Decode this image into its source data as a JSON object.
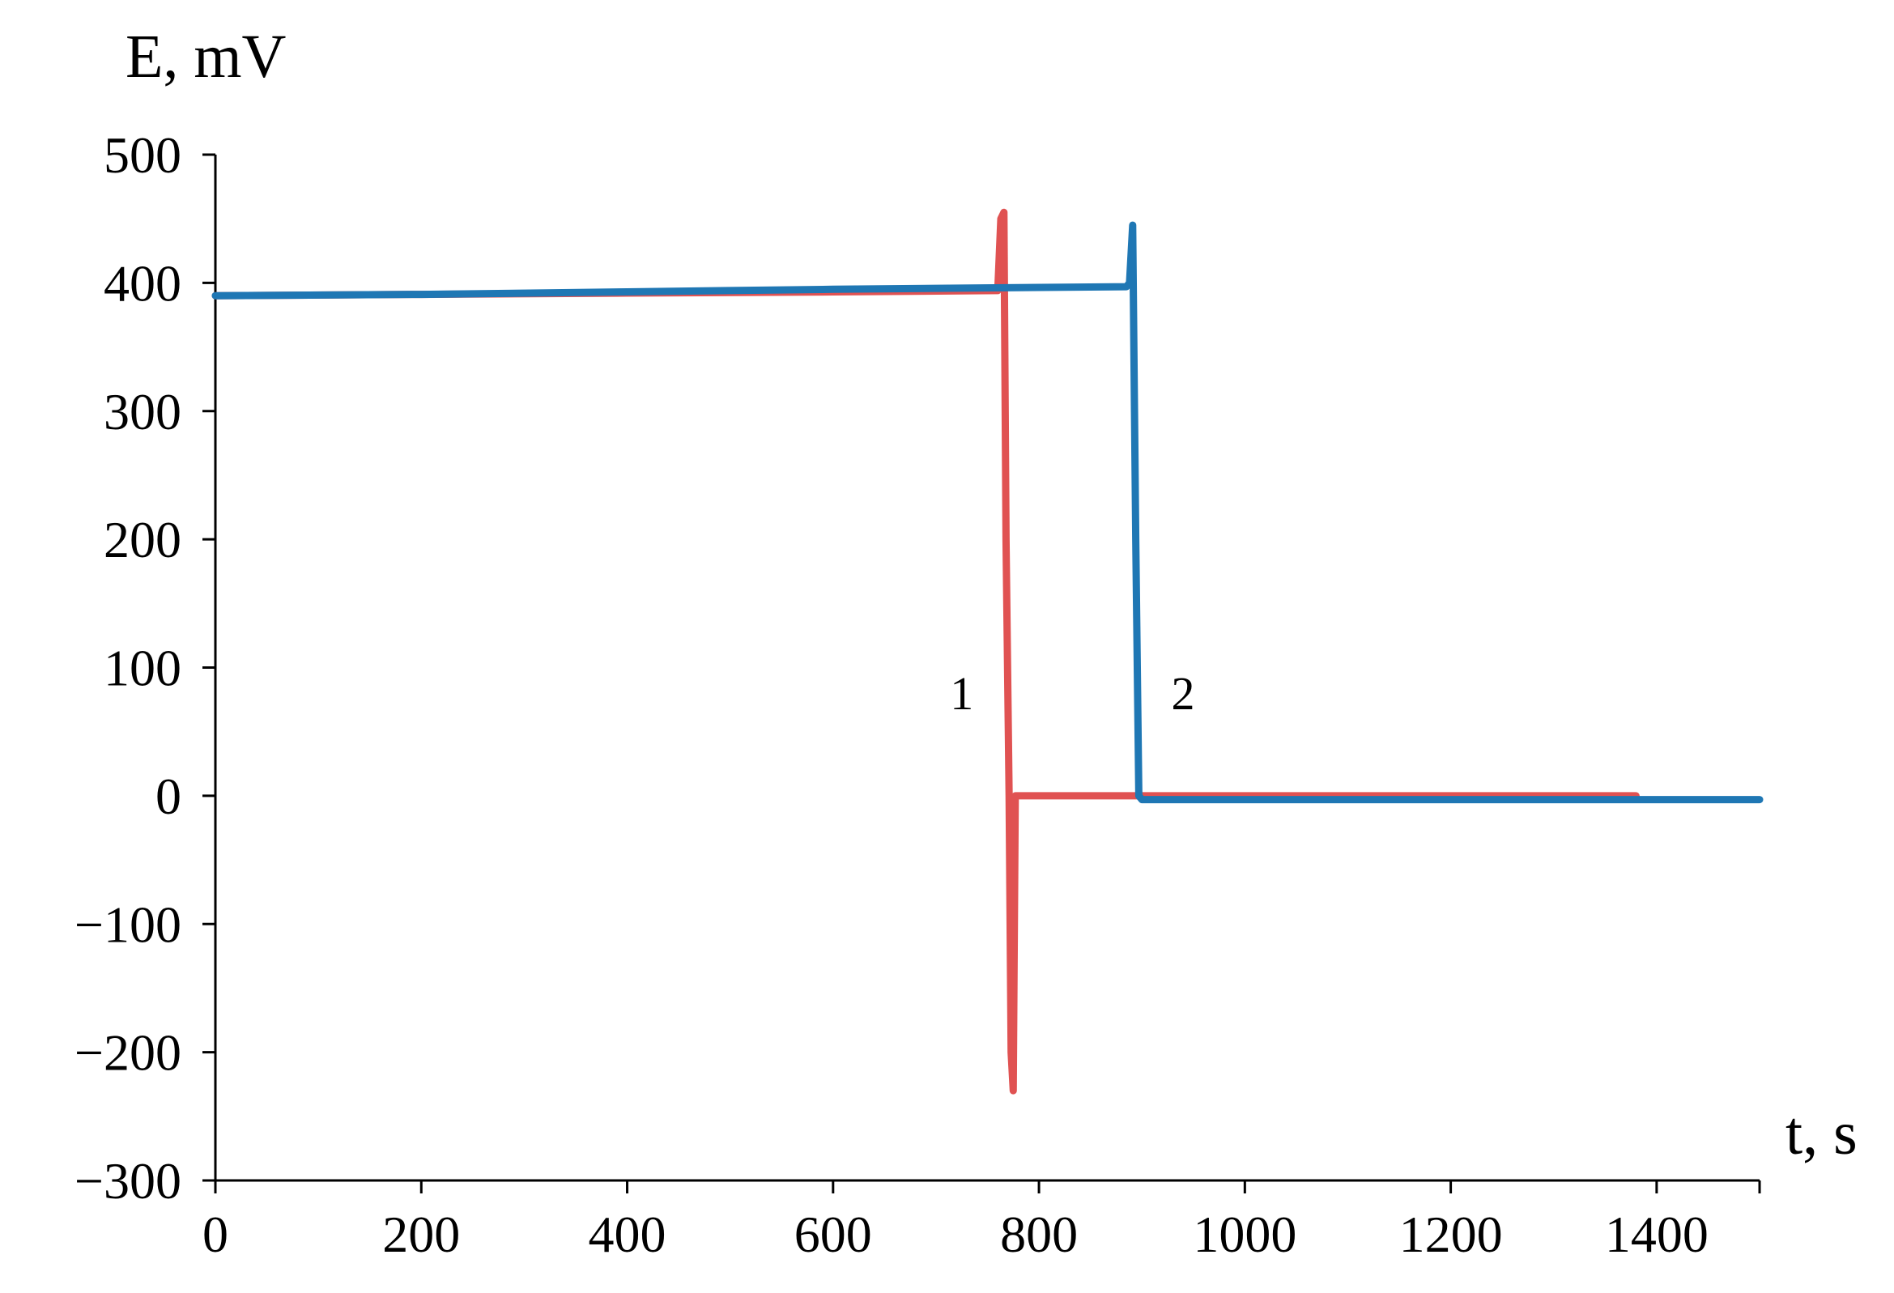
{
  "chart_data": {
    "type": "line",
    "title": "",
    "xlabel": "t, s",
    "ylabel": "E, mV",
    "xlim": [
      0,
      1500
    ],
    "ylim": [
      -300,
      500
    ],
    "x_ticks": [
      0,
      200,
      400,
      600,
      800,
      1000,
      1200,
      1400
    ],
    "x_tick_labels": [
      "0",
      "200",
      "400",
      "600",
      "800",
      "1000",
      "1200",
      "1400"
    ],
    "y_ticks": [
      500,
      400,
      300,
      200,
      100,
      0,
      -100,
      -200,
      -300
    ],
    "y_tick_labels": [
      "500",
      "400",
      "300",
      "200",
      "100",
      "0",
      "−100",
      "−200",
      "−300"
    ],
    "grid": false,
    "legend": "none",
    "series": [
      {
        "name": "1",
        "color": "#e05252",
        "x": [
          0,
          200,
          400,
          600,
          760,
          763,
          766,
          768,
          771,
          773,
          775,
          777,
          780,
          1000,
          1200,
          1380
        ],
        "y": [
          390,
          391,
          392,
          393,
          394,
          450,
          455,
          200,
          0,
          -200,
          -230,
          0,
          0,
          0,
          0,
          0
        ]
      },
      {
        "name": "2",
        "color": "#1f77b4",
        "x": [
          0,
          200,
          400,
          600,
          885,
          888,
          891,
          894,
          897,
          900,
          1000,
          1200,
          1400,
          1500
        ],
        "y": [
          390,
          391,
          393,
          395,
          397,
          400,
          445,
          200,
          0,
          -3,
          -3,
          -3,
          -3,
          -3
        ]
      }
    ],
    "annotations": [
      {
        "text": "1",
        "x": 725,
        "y": 80
      },
      {
        "text": "2",
        "x": 940,
        "y": 80
      }
    ]
  }
}
